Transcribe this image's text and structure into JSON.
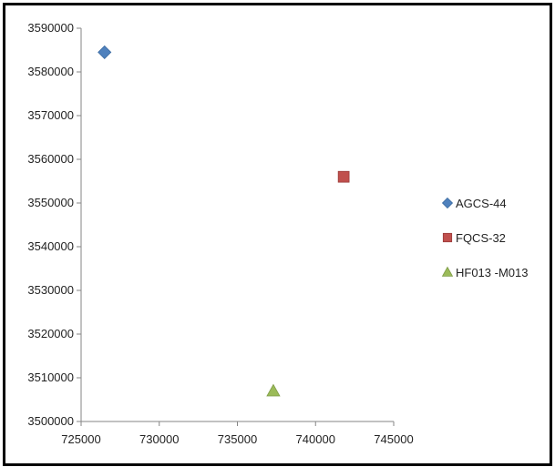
{
  "chart_data": {
    "type": "scatter",
    "title": "",
    "xlabel": "",
    "ylabel": "",
    "xlim": [
      725000,
      745000
    ],
    "ylim": [
      3500000,
      3590000
    ],
    "x_ticks": [
      "725000",
      "730000",
      "735000",
      "740000",
      "745000"
    ],
    "y_ticks": [
      "3500000",
      "3510000",
      "3520000",
      "3530000",
      "3540000",
      "3550000",
      "3560000",
      "3570000",
      "3580000",
      "3590000"
    ],
    "grid": false,
    "legend_position": "right",
    "series": [
      {
        "name": "AGCS-44",
        "marker": "diamond",
        "color": "#4F81BD",
        "x": 726500,
        "y": 3584500
      },
      {
        "name": "FQCS-32",
        "marker": "square",
        "color": "#C0504D",
        "x": 741800,
        "y": 3556000
      },
      {
        "name": "HF013 -M013",
        "marker": "triangle",
        "color": "#9BBB59",
        "x": 737300,
        "y": 3507000
      }
    ]
  }
}
